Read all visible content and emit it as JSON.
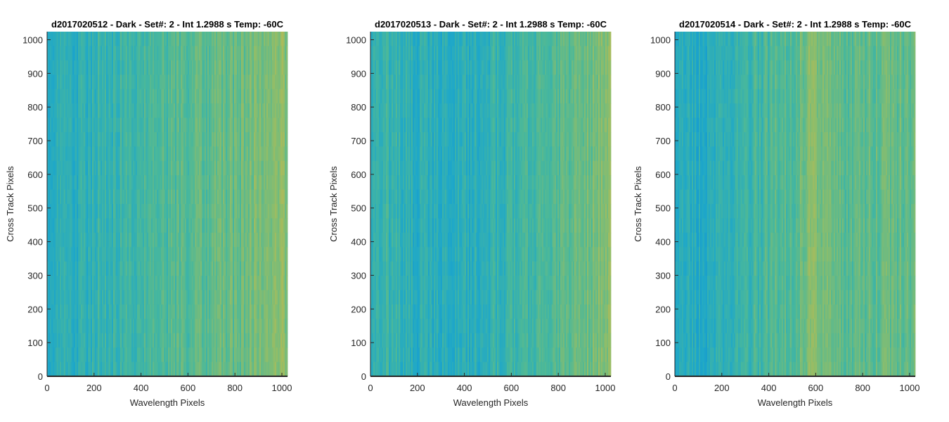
{
  "chart_data": [
    {
      "type": "heatmap",
      "title": "d2017020512 - Dark - Set#: 2 - Int 1.2988 s Temp: -60C",
      "xlabel": "Wavelength Pixels",
      "ylabel": "Cross Track Pixels",
      "xlim": [
        0,
        1024
      ],
      "ylim": [
        0,
        1024
      ],
      "xticks": [
        0,
        200,
        400,
        600,
        800,
        1000
      ],
      "yticks": [
        0,
        100,
        200,
        300,
        400,
        500,
        600,
        700,
        800,
        900,
        1000
      ],
      "colormap": "parula",
      "grid": false,
      "column_profile": {
        "x": [
          0,
          100,
          200,
          300,
          400,
          500,
          600,
          700,
          800,
          900,
          1000,
          1024
        ],
        "level": [
          0.25,
          0.32,
          0.38,
          0.42,
          0.46,
          0.5,
          0.54,
          0.57,
          0.6,
          0.66,
          0.72,
          0.72
        ]
      }
    },
    {
      "type": "heatmap",
      "title": "d2017020513 - Dark - Set#: 2 - Int 1.2988 s Temp: -60C",
      "xlabel": "Wavelength Pixels",
      "ylabel": "Cross Track Pixels",
      "xlim": [
        0,
        1024
      ],
      "ylim": [
        0,
        1024
      ],
      "xticks": [
        0,
        200,
        400,
        600,
        800,
        1000
      ],
      "yticks": [
        0,
        100,
        200,
        300,
        400,
        500,
        600,
        700,
        800,
        900,
        1000
      ],
      "colormap": "parula",
      "grid": false,
      "column_profile": {
        "x": [
          0,
          100,
          200,
          300,
          400,
          500,
          600,
          700,
          800,
          900,
          1000,
          1024
        ],
        "level": [
          0.42,
          0.38,
          0.33,
          0.3,
          0.32,
          0.36,
          0.42,
          0.48,
          0.54,
          0.6,
          0.7,
          0.72
        ]
      }
    },
    {
      "type": "heatmap",
      "title": "d2017020514 - Dark - Set#: 2 - Int 1.2988 s Temp: -60C",
      "xlabel": "Wavelength Pixels",
      "ylabel": "Cross Track Pixels",
      "xlim": [
        0,
        1024
      ],
      "ylim": [
        0,
        1024
      ],
      "xticks": [
        0,
        200,
        400,
        600,
        800,
        1000
      ],
      "yticks": [
        0,
        100,
        200,
        300,
        400,
        500,
        600,
        700,
        800,
        900,
        1000
      ],
      "colormap": "parula",
      "grid": false,
      "column_profile": {
        "x": [
          0,
          100,
          200,
          300,
          400,
          500,
          550,
          600,
          650,
          700,
          800,
          900,
          1000,
          1024
        ],
        "level": [
          0.3,
          0.28,
          0.35,
          0.42,
          0.5,
          0.56,
          0.66,
          0.7,
          0.64,
          0.58,
          0.56,
          0.58,
          0.6,
          0.6
        ]
      }
    }
  ],
  "colors": {
    "colormap_low": "#0d8fd6",
    "colormap_mid_low": "#1fa8c8",
    "colormap_mid": "#4ab89a",
    "colormap_mid_high": "#8ebd6a",
    "colormap_high": "#c9b84a",
    "axis": "#262626",
    "title": "#000000",
    "background": "#ffffff"
  }
}
